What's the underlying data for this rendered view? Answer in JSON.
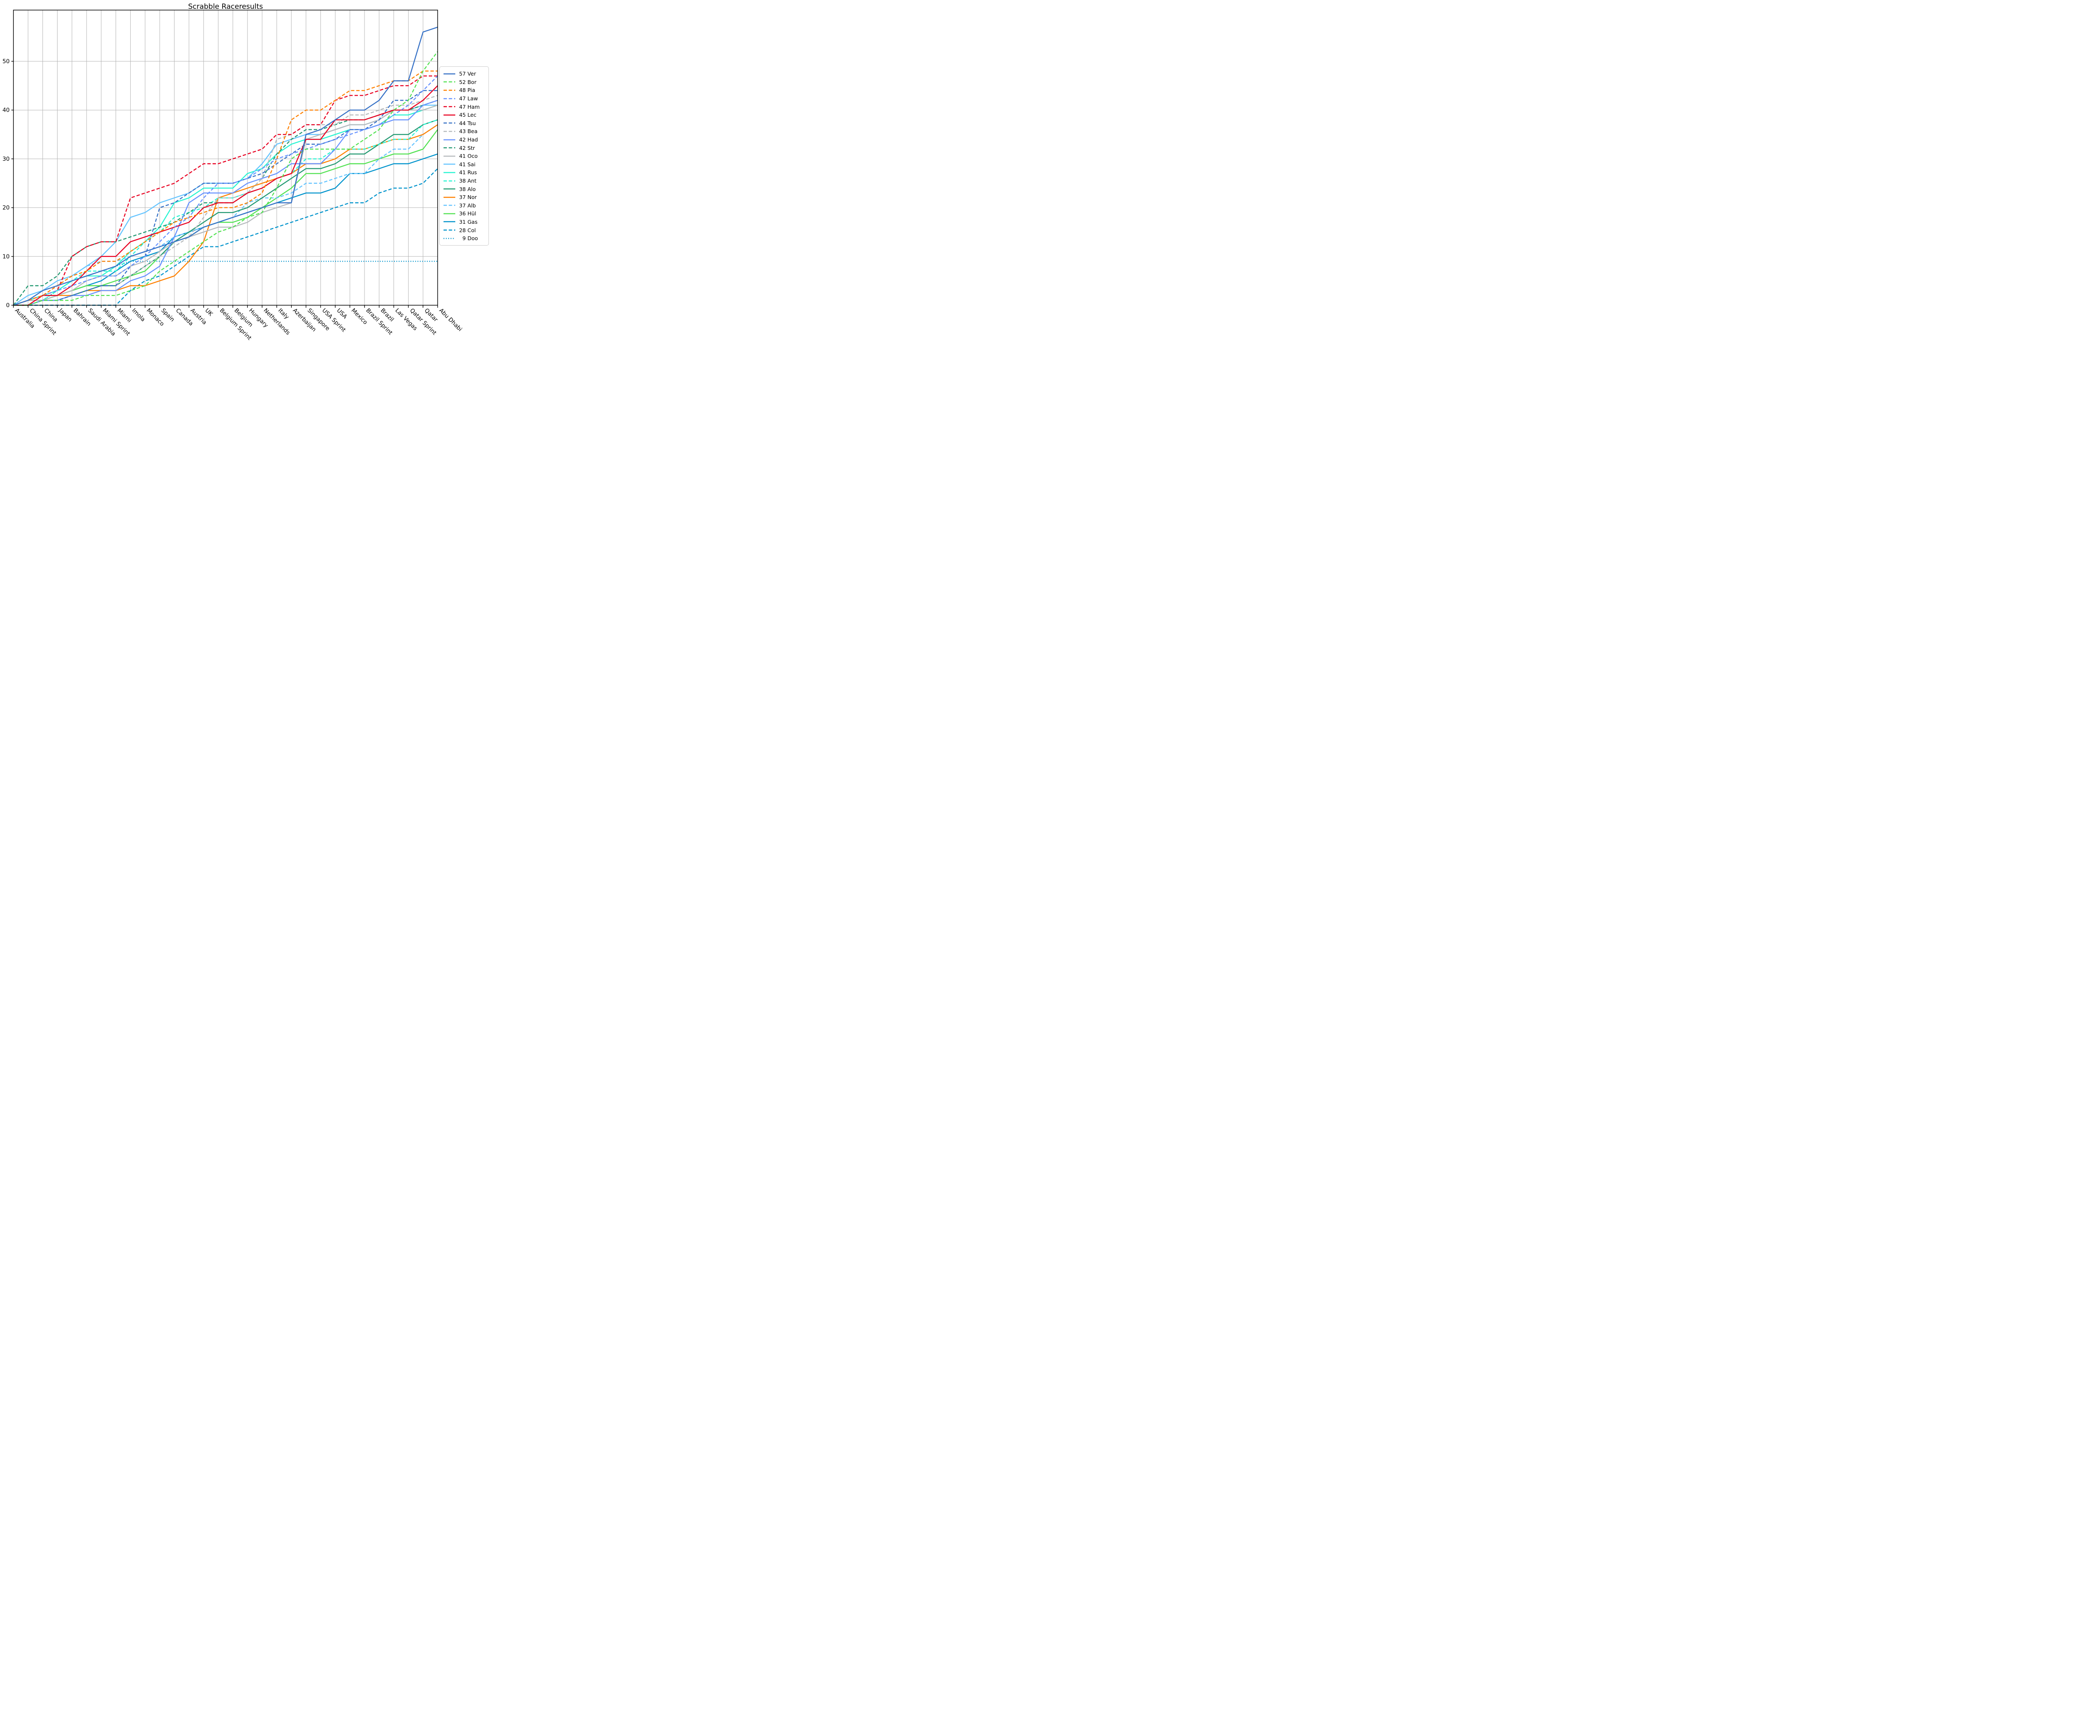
{
  "title": "Scrabble Raceresults",
  "chart_data": {
    "type": "line",
    "title": "Scrabble Raceresults",
    "xlabel": "",
    "ylabel": "",
    "ylim": [
      0,
      60.5
    ],
    "yticks": [
      0,
      10,
      20,
      30,
      40,
      50
    ],
    "grid": true,
    "legend_position": "center right",
    "categories": [
      "Australia",
      "China Sprint",
      "China",
      "Japan",
      "Bahrain",
      "Saudi Arabia",
      "Miami Sprint",
      "Miami",
      "Imola",
      "Monaco",
      "Spain",
      "Canada",
      "Austria",
      "UK",
      "Belgium Sprint",
      "Belgium",
      "Hungary",
      "Netherlands",
      "Italy",
      "Azerbaijan",
      "Singapore",
      "USA Sprint",
      "USA",
      "Mexico",
      "Brazil Sprint",
      "Brazil",
      "Las Vegas",
      "Qatar Sprint",
      "Qatar",
      "Abu Dhabi"
    ],
    "series": [
      {
        "name": "Ver",
        "total": 57,
        "color": "#3671C6",
        "style": "solid",
        "values": [
          0,
          1,
          3,
          4,
          5,
          6,
          7,
          8,
          10,
          11,
          12,
          13,
          14,
          16,
          17,
          18,
          19,
          20,
          21,
          21,
          35,
          36,
          38,
          40,
          40,
          42,
          46,
          46,
          56,
          57
        ]
      },
      {
        "name": "Bor",
        "total": 52,
        "color": "#52E252",
        "style": "dashed",
        "values": [
          0,
          0,
          1,
          1,
          1,
          2,
          2,
          2,
          3,
          4,
          7,
          9,
          11,
          13,
          15,
          16,
          18,
          19,
          24,
          30,
          32,
          32,
          32,
          32,
          34,
          36,
          40,
          42,
          48,
          52
        ]
      },
      {
        "name": "Pia",
        "total": 48,
        "color": "#FF8000",
        "style": "dashed",
        "values": [
          0,
          1,
          2,
          4,
          6,
          7,
          9,
          9,
          11,
          13,
          15,
          17,
          18,
          19,
          20,
          20,
          21,
          23,
          30,
          38,
          40,
          40,
          42,
          44,
          44,
          45,
          46,
          46,
          48,
          48
        ]
      },
      {
        "name": "Law",
        "total": 47,
        "color": "#6692FF",
        "style": "dashed",
        "values": [
          0,
          1,
          2,
          3,
          4,
          5,
          6,
          6,
          8,
          10,
          13,
          16,
          18,
          22,
          25,
          25,
          26,
          28,
          30,
          31,
          32,
          33,
          34,
          35,
          36,
          37,
          39,
          41,
          44,
          47
        ]
      },
      {
        "name": "Ham",
        "total": 47,
        "color": "#E80020",
        "style": "dashed",
        "values": [
          0,
          1,
          2,
          3,
          10,
          12,
          13,
          13,
          22,
          23,
          24,
          25,
          27,
          29,
          29,
          30,
          31,
          32,
          35,
          35,
          37,
          37,
          42,
          43,
          43,
          44,
          45,
          45,
          47,
          47
        ]
      },
      {
        "name": "Lec",
        "total": 45,
        "color": "#E80020",
        "style": "solid",
        "values": [
          0,
          0,
          2,
          2,
          4,
          7,
          10,
          10,
          13,
          14,
          15,
          16,
          17,
          20,
          21,
          21,
          23,
          24,
          26,
          27,
          34,
          34,
          38,
          38,
          38,
          39,
          40,
          40,
          42,
          45
        ]
      },
      {
        "name": "Tsu",
        "total": 44,
        "color": "#3671C6",
        "style": "dashed",
        "values": [
          0,
          0,
          1,
          1,
          2,
          3,
          4,
          4,
          8,
          10,
          20,
          21,
          23,
          25,
          25,
          25,
          26,
          27,
          29,
          31,
          33,
          33,
          34,
          36,
          36,
          38,
          42,
          42,
          44,
          44
        ]
      },
      {
        "name": "Bea",
        "total": 43,
        "color": "#B6BABD",
        "style": "dashed",
        "values": [
          0,
          1,
          1,
          1,
          2,
          3,
          4,
          4,
          6,
          8,
          10,
          12,
          14,
          18,
          22,
          22,
          23,
          26,
          34,
          35,
          37,
          37,
          37,
          39,
          39,
          40,
          41,
          41,
          42,
          43
        ]
      },
      {
        "name": "Had",
        "total": 42,
        "color": "#6692FF",
        "style": "solid",
        "values": [
          0,
          0,
          1,
          1,
          2,
          2,
          3,
          3,
          5,
          6,
          8,
          14,
          21,
          23,
          23,
          23,
          25,
          26,
          27,
          29,
          29,
          29,
          32,
          36,
          36,
          37,
          38,
          38,
          41,
          42
        ]
      },
      {
        "name": "Str",
        "total": 42,
        "color": "#229971",
        "style": "dashed",
        "values": [
          0,
          4,
          4,
          6,
          10,
          12,
          13,
          13,
          14,
          15,
          16,
          17,
          19,
          21,
          21,
          21,
          23,
          26,
          31,
          34,
          36,
          36,
          37,
          38,
          38,
          39,
          40,
          40,
          41,
          42
        ]
      },
      {
        "name": "Oco",
        "total": 41,
        "color": "#B6BABD",
        "style": "solid",
        "values": [
          0,
          1,
          1,
          2,
          3,
          5,
          6,
          6,
          8,
          9,
          11,
          13,
          14,
          15,
          16,
          16,
          17,
          19,
          20,
          21,
          34,
          35,
          36,
          37,
          37,
          38,
          40,
          40,
          40,
          41
        ]
      },
      {
        "name": "Sai",
        "total": 41,
        "color": "#64C4FF",
        "style": "solid",
        "values": [
          0,
          2,
          3,
          5,
          6,
          8,
          10,
          13,
          18,
          19,
          21,
          22,
          23,
          25,
          25,
          25,
          26,
          29,
          33,
          34,
          35,
          35,
          36,
          37,
          37,
          38,
          40,
          40,
          41,
          41
        ]
      },
      {
        "name": "Rus",
        "total": 41,
        "color": "#27F4D2",
        "style": "solid",
        "values": [
          0,
          1,
          2,
          3,
          5,
          6,
          6,
          8,
          11,
          13,
          16,
          21,
          22,
          24,
          24,
          24,
          27,
          28,
          31,
          33,
          34,
          34,
          35,
          36,
          36,
          37,
          39,
          39,
          40,
          41
        ]
      },
      {
        "name": "Ant",
        "total": 38,
        "color": "#27F4D2",
        "style": "dashed",
        "values": [
          0,
          1,
          1,
          3,
          5,
          7,
          7,
          7,
          10,
          13,
          15,
          18,
          19,
          20,
          22,
          22,
          23,
          24,
          26,
          27,
          30,
          30,
          32,
          32,
          32,
          33,
          34,
          34,
          37,
          38
        ]
      },
      {
        "name": "Alo",
        "total": 38,
        "color": "#229971",
        "style": "solid",
        "values": [
          0,
          0,
          1,
          1,
          2,
          3,
          4,
          4,
          6,
          8,
          10,
          13,
          15,
          17,
          19,
          19,
          20,
          22,
          24,
          26,
          28,
          28,
          29,
          31,
          31,
          33,
          35,
          35,
          37,
          38
        ]
      },
      {
        "name": "Nor",
        "total": 37,
        "color": "#FF8000",
        "style": "solid",
        "values": [
          0,
          1,
          2,
          2,
          2,
          3,
          3,
          3,
          4,
          4,
          5,
          6,
          9,
          13,
          22,
          23,
          24,
          25,
          26,
          27,
          29,
          29,
          30,
          32,
          32,
          33,
          34,
          34,
          35,
          37
        ]
      },
      {
        "name": "Alb",
        "total": 37,
        "color": "#64C4FF",
        "style": "dashed",
        "values": [
          0,
          1,
          2,
          4,
          6,
          8,
          9,
          9,
          10,
          11,
          12,
          14,
          15,
          16,
          17,
          18,
          21,
          22,
          22,
          23,
          25,
          25,
          26,
          27,
          27,
          30,
          32,
          32,
          35,
          37
        ]
      },
      {
        "name": "Hül",
        "total": 36,
        "color": "#52E252",
        "style": "solid",
        "values": [
          0,
          1,
          1,
          2,
          3,
          4,
          4,
          5,
          6,
          7,
          10,
          13,
          14,
          16,
          17,
          17,
          18,
          20,
          22,
          24,
          27,
          27,
          28,
          29,
          29,
          30,
          31,
          31,
          32,
          36
        ]
      },
      {
        "name": "Gas",
        "total": 31,
        "color": "#0093CC",
        "style": "solid",
        "values": [
          0,
          0,
          1,
          2,
          3,
          4,
          5,
          7,
          9,
          10,
          11,
          14,
          15,
          16,
          17,
          18,
          19,
          20,
          21,
          22,
          23,
          23,
          24,
          27,
          27,
          28,
          29,
          29,
          30,
          31
        ]
      },
      {
        "name": "Col",
        "total": 28,
        "color": "#0093CC",
        "style": "dashed",
        "values": [
          0,
          0,
          0,
          0,
          0,
          0,
          0,
          0,
          3,
          5,
          6,
          8,
          10,
          12,
          12,
          13,
          14,
          15,
          16,
          17,
          18,
          19,
          20,
          21,
          21,
          23,
          24,
          24,
          25,
          28
        ]
      },
      {
        "name": "Doo",
        "total": 9,
        "color": "#0093CC",
        "style": "dotted",
        "values": [
          0,
          1,
          1,
          3,
          5,
          6,
          7,
          8,
          9,
          9,
          9,
          9,
          9,
          9,
          9,
          9,
          9,
          9,
          9,
          9,
          9,
          9,
          9,
          9,
          9,
          9,
          9,
          9,
          9,
          9
        ]
      }
    ]
  }
}
